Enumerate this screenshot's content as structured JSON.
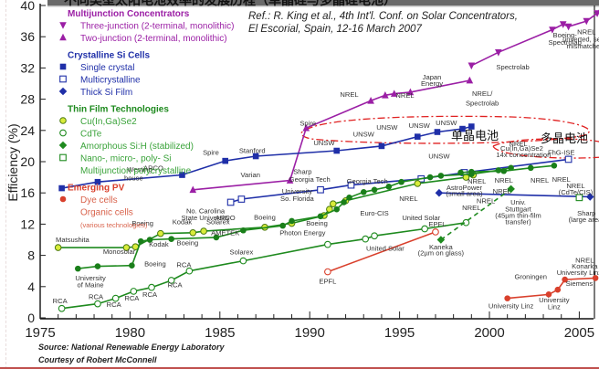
{
  "page": {
    "top_banner_text": "不同类型太阳电池效率的发展历程（单晶硅与多晶硅电池）",
    "annotations_cn": {
      "mono": "单晶电池",
      "poly": "多晶电池"
    },
    "colors": {
      "multijunction": "#9b1fa5",
      "crystalline": "#1f2fa8",
      "thin_film": "#1e8a1e",
      "cigs_fill": "#d9ec3a",
      "emerging": "#d9402c",
      "annotation_red": "#e02020"
    }
  },
  "chart_data": {
    "type": "line",
    "title": "",
    "xlabel": "",
    "ylabel": "Efficiency (%)",
    "xlim": [
      1975,
      2006
    ],
    "ylim": [
      0,
      40
    ],
    "xticks": [
      "1975",
      "1980",
      "1985",
      "1990",
      "1995",
      "2000",
      "2005"
    ],
    "yticks": [
      "0",
      "4",
      "8",
      "12",
      "16",
      "20",
      "24",
      "28",
      "32",
      "36",
      "40"
    ],
    "grid": false,
    "reference": [
      "Ref.: R. King et al., 4th Int'l. Conf. on Solar Concentrators,",
      "El Escorial, Spain, 12-16 March 2007"
    ],
    "source": [
      "Source:  National Renewable Energy Laboratory",
      "Courtesy of Robert McConnell"
    ],
    "legend": {
      "placement": "top-left",
      "groups": [
        {
          "title": "Multijunction Concentrators",
          "color": "#9b1fa5",
          "entries": [
            {
              "marker": "triangle-down",
              "label": "Three-junction (2-terminal, monolithic)"
            },
            {
              "marker": "triangle-up",
              "label": "Two-junction (2-terminal, monolithic)"
            }
          ]
        },
        {
          "title": "Crystalline Si Cells",
          "color": "#1f2fa8",
          "entries": [
            {
              "marker": "square-filled",
              "label": "Single crystal"
            },
            {
              "marker": "square-open",
              "label": "Multicrystalline"
            },
            {
              "marker": "diamond",
              "label": "Thick Si Film"
            }
          ]
        },
        {
          "title": "Thin Film Technologies",
          "color": "#1e8a1e",
          "entries": [
            {
              "marker": "circle-yellow",
              "label": "Cu(In,Ga)Se2"
            },
            {
              "marker": "circle-open",
              "label": "CdTe"
            },
            {
              "marker": "diamond-green",
              "label": "Amorphous Si:H (stabilized)"
            },
            {
              "marker": "square-open-green",
              "label": "Nano-, micro-, poly- Si"
            },
            {
              "marker": "none",
              "label": "Multijunction polycrystalline"
            }
          ]
        },
        {
          "title": "Emerging PV",
          "color": "#d9402c",
          "entries": [
            {
              "marker": "circle-filled-red",
              "label": "Dye cells"
            },
            {
              "marker": "none",
              "label": "Organic cells"
            },
            {
              "marker": "none",
              "label": "(various technologies)"
            }
          ]
        }
      ]
    },
    "series": [
      {
        "name": "Three-junction concentrator",
        "color": "#9b1fa5",
        "marker": "triangle-down",
        "points": [
          [
            1999.0,
            32.3
          ],
          [
            2000.5,
            34.0
          ],
          [
            2003.5,
            36.9
          ],
          [
            2004.1,
            37.6
          ],
          [
            2004.4,
            37.3
          ],
          [
            2005.4,
            38.0
          ],
          [
            2006.0,
            39.0
          ],
          [
            2006.3,
            40.0
          ]
        ]
      },
      {
        "name": "Two-junction concentrator",
        "color": "#9b1fa5",
        "marker": "triangle-up",
        "points": [
          [
            1983.5,
            16.4
          ],
          [
            1988.9,
            17.6
          ],
          [
            1989.8,
            24.3
          ],
          [
            1993.4,
            27.8
          ],
          [
            1994.2,
            28.5
          ],
          [
            1994.7,
            28.7
          ],
          [
            1995.6,
            28.9
          ],
          [
            1998.9,
            30.4
          ]
        ]
      },
      {
        "name": "Single crystal Si",
        "color": "#1f2fa8",
        "marker": "square-filled",
        "points": [
          [
            1976.2,
            16.6
          ],
          [
            1978.2,
            17.4
          ],
          [
            1982.9,
            18.3
          ],
          [
            1985.3,
            20.1
          ],
          [
            1987.0,
            20.7
          ],
          [
            1991.5,
            21.4
          ],
          [
            1994.0,
            22.0
          ],
          [
            1996.0,
            23.2
          ],
          [
            1997.1,
            23.8
          ],
          [
            1998.5,
            24.2
          ],
          [
            1999.0,
            24.5
          ]
        ]
      },
      {
        "name": "Multicrystalline Si",
        "color": "#1f2fa8",
        "marker": "square-open",
        "points": [
          [
            1985.6,
            14.8
          ],
          [
            1986.2,
            15.2
          ],
          [
            1990.6,
            16.4
          ],
          [
            1992.3,
            17.0
          ],
          [
            1996.2,
            17.8
          ],
          [
            1998.6,
            18.6
          ],
          [
            2004.4,
            20.3
          ]
        ]
      },
      {
        "name": "Cu(In,Ga)Se2",
        "color": "#1e8a1e",
        "marker": "circle-yellow",
        "points": [
          [
            1976.0,
            9.0
          ],
          [
            1979.8,
            9.0
          ],
          [
            1980.3,
            9.1
          ],
          [
            1981.7,
            10.8
          ],
          [
            1983.5,
            10.9
          ],
          [
            1984.1,
            11.1
          ],
          [
            1987.5,
            11.6
          ],
          [
            1989.0,
            12.1
          ],
          [
            1990.8,
            13.1
          ],
          [
            1991.1,
            13.9
          ],
          [
            1991.3,
            14.6
          ],
          [
            1992.0,
            15.0
          ],
          [
            1996.0,
            17.2
          ],
          [
            1998.7,
            18.0
          ],
          [
            1999.1,
            18.3
          ]
        ]
      },
      {
        "name": "CdTe",
        "color": "#1e8a1e",
        "marker": "circle-open",
        "points": [
          [
            1976.2,
            1.2
          ],
          [
            1978.2,
            1.8
          ],
          [
            1979.2,
            2.5
          ],
          [
            1980.2,
            3.4
          ],
          [
            1981.2,
            3.9
          ],
          [
            1982.3,
            4.8
          ],
          [
            1983.3,
            6.0
          ],
          [
            1986.3,
            7.3
          ],
          [
            1991.0,
            9.4
          ],
          [
            1993.1,
            10.1
          ],
          [
            1993.6,
            10.5
          ],
          [
            1996.4,
            11.4
          ],
          [
            1998.7,
            12.2
          ]
        ]
      },
      {
        "name": "Amorphous Si:H",
        "color": "#1e8a1e",
        "marker": "circle-filled-green",
        "points": [
          [
            1977.1,
            6.3
          ],
          [
            1978.2,
            6.6
          ],
          [
            1980.1,
            6.7
          ],
          [
            1980.6,
            9.8
          ],
          [
            1981.1,
            10.0
          ],
          [
            1982.3,
            10.1
          ],
          [
            1984.8,
            10.3
          ],
          [
            1986.3,
            11.2
          ],
          [
            1988.5,
            11.8
          ],
          [
            1989.0,
            12.4
          ],
          [
            1990.6,
            13.0
          ],
          [
            1991.5,
            13.9
          ],
          [
            1991.9,
            14.8
          ],
          [
            1992.2,
            15.4
          ],
          [
            1993.0,
            16.1
          ],
          [
            1993.6,
            16.4
          ],
          [
            1994.4,
            16.8
          ],
          [
            1995.1,
            17.4
          ],
          [
            1996.7,
            18.0
          ],
          [
            1997.3,
            18.2
          ],
          [
            1999.0,
            18.4
          ],
          [
            2000.5,
            18.9
          ],
          [
            2001.2,
            19.2
          ]
        ]
      },
      {
        "name": "Thin film top (NREL CIGS)",
        "color": "#1e8a1e",
        "marker": "circle-filled-green",
        "points": [
          [
            1998.4,
            18.6
          ],
          [
            1999.0,
            18.7
          ],
          [
            2000.8,
            18.8
          ],
          [
            2002.3,
            19.2
          ],
          [
            2003.6,
            19.5
          ]
        ]
      },
      {
        "name": "Thick Si Film",
        "color": "#1f2fa8",
        "marker": "diamond",
        "points": [
          [
            1997.2,
            16.0
          ],
          [
            2005.6,
            15.5
          ]
        ]
      },
      {
        "name": "Kaneka / Stuttgart",
        "color": "#1e8a1e",
        "marker": "diamond-green",
        "dashed": true,
        "points": [
          [
            1997.3,
            10.0
          ],
          [
            2001.2,
            16.5
          ]
        ]
      },
      {
        "name": "Dye cells (EPFL)",
        "color": "#d9402c",
        "marker": "circle-open-red",
        "points": [
          [
            1991.0,
            5.9
          ],
          [
            1997.0,
            11.0
          ]
        ]
      },
      {
        "name": "Organic cells",
        "color": "#d9402c",
        "marker": "circle-filled-red",
        "points": [
          [
            2001.0,
            2.5
          ],
          [
            2003.3,
            3.0
          ],
          [
            2003.8,
            3.6
          ],
          [
            2004.2,
            4.9
          ],
          [
            2005.9,
            5.1
          ]
        ]
      },
      {
        "name": "Nano/micro/poly Si",
        "color": "#1e8a1e",
        "marker": "square-open-green",
        "points": [
          [
            2005.0,
            15.4
          ]
        ]
      }
    ],
    "annotations": [
      {
        "text": "Spire",
        "x": 1989.9,
        "y": 24.6
      },
      {
        "text": "NREL",
        "x": 1995.3,
        "y": 28.2
      },
      {
        "text": "Japan",
        "x": 1996.8,
        "y": 30.5
      },
      {
        "text": "Energy",
        "x": 1996.8,
        "y": 29.7
      },
      {
        "text": "NREL/",
        "x": 1999.6,
        "y": 28.4
      },
      {
        "text": "Spectrolab",
        "x": 1999.6,
        "y": 27.2
      },
      {
        "text": "Spectrolab",
        "x": 2001.3,
        "y": 31.8
      },
      {
        "text": "Boeing-",
        "x": 2004.2,
        "y": 35.9
      },
      {
        "text": "Spectrolab",
        "x": 2004.2,
        "y": 35.0
      },
      {
        "text": "NREL",
        "x": 2005.4,
        "y": 36.3
      },
      {
        "text": "(inverted, semi-",
        "x": 2005.4,
        "y": 35.4
      },
      {
        "text": "mismatched)",
        "x": 2005.4,
        "y": 34.5
      },
      {
        "text": "NREL",
        "x": 1992.2,
        "y": 28.3
      },
      {
        "text": "Varian",
        "x": 1986.7,
        "y": 18.0
      },
      {
        "text": "Spire",
        "x": 1984.5,
        "y": 20.9
      },
      {
        "text": "Stanford",
        "x": 1986.8,
        "y": 21.1
      },
      {
        "text": "Westing-",
        "x": 1980.6,
        "y": 18.7
      },
      {
        "text": "house",
        "x": 1980.2,
        "y": 17.6
      },
      {
        "text": "ARCO",
        "x": 1981.3,
        "y": 18.9
      },
      {
        "text": "UNSW",
        "x": 1990.8,
        "y": 22.1
      },
      {
        "text": "UNSW",
        "x": 1993.0,
        "y": 23.2
      },
      {
        "text": "UNSW",
        "x": 1994.3,
        "y": 24.1
      },
      {
        "text": "UNSW",
        "x": 1996.1,
        "y": 24.3
      },
      {
        "text": "UNSW",
        "x": 1997.6,
        "y": 24.7
      },
      {
        "text": "No. Carolina",
        "x": 1984.2,
        "y": 13.4
      },
      {
        "text": "State University",
        "x": 1984.2,
        "y": 12.5
      },
      {
        "text": "Solarex",
        "x": 1984.9,
        "y": 12.0
      },
      {
        "text": "Georgia Tech",
        "x": 1993.2,
        "y": 17.2
      },
      {
        "text": "Sharp",
        "x": 1989.6,
        "y": 18.4
      },
      {
        "text": "Georgia Tech",
        "x": 1990.0,
        "y": 17.4
      },
      {
        "text": "UNSW",
        "x": 1997.2,
        "y": 20.4
      },
      {
        "text": "FhG-ISE",
        "x": 2004.0,
        "y": 20.9
      },
      {
        "text": "NREL",
        "x": 2001.6,
        "y": 22.0
      },
      {
        "text": "Cu(In,Ga)Se2",
        "x": 2001.8,
        "y": 21.4
      },
      {
        "text": "14x concentration",
        "x": 2001.9,
        "y": 20.6
      },
      {
        "text": "NREL",
        "x": 1999.3,
        "y": 17.2
      },
      {
        "text": "NREL",
        "x": 2000.8,
        "y": 17.3
      },
      {
        "text": "NREL",
        "x": 2002.8,
        "y": 17.3
      },
      {
        "text": "NREL",
        "x": 2004.0,
        "y": 17.4
      },
      {
        "text": "AstroPower",
        "x": 1998.6,
        "y": 16.4
      },
      {
        "text": "(small area)",
        "x": 1998.6,
        "y": 15.6
      },
      {
        "text": "NREL",
        "x": 1995.5,
        "y": 15.0
      },
      {
        "text": "NREL",
        "x": 1999.0,
        "y": 13.8
      },
      {
        "text": "NREL",
        "x": 1999.8,
        "y": 14.7
      },
      {
        "text": "NREL",
        "x": 2000.7,
        "y": 15.9
      },
      {
        "text": "Univ.",
        "x": 2001.6,
        "y": 14.5
      },
      {
        "text": "Stuttgart",
        "x": 2001.6,
        "y": 13.6
      },
      {
        "text": "(45µm thin-film",
        "x": 2001.6,
        "y": 12.8
      },
      {
        "text": "transfer)",
        "x": 2001.6,
        "y": 12.0
      },
      {
        "text": "NREL",
        "x": 2004.8,
        "y": 16.6
      },
      {
        "text": "(CdTe/CIS)",
        "x": 2004.8,
        "y": 15.8
      },
      {
        "text": "Sharp",
        "x": 2005.4,
        "y": 13.1
      },
      {
        "text": "(large area)",
        "x": 2005.4,
        "y": 12.3
      },
      {
        "text": "University",
        "x": 1989.3,
        "y": 15.9
      },
      {
        "text": "So. Florida",
        "x": 1989.3,
        "y": 15.0
      },
      {
        "text": "Euro-CIS",
        "x": 1993.6,
        "y": 13.1
      },
      {
        "text": "Boeing",
        "x": 1990.4,
        "y": 11.8
      },
      {
        "text": "ARCO",
        "x": 1985.3,
        "y": 12.5
      },
      {
        "text": "Boeing",
        "x": 1987.5,
        "y": 12.6
      },
      {
        "text": "AMETEK",
        "x": 1985.3,
        "y": 10.6
      },
      {
        "text": "Photon Energy",
        "x": 1989.6,
        "y": 10.6
      },
      {
        "text": "United Solar",
        "x": 1994.2,
        "y": 8.6
      },
      {
        "text": "United Solar",
        "x": 1996.2,
        "y": 12.5
      },
      {
        "text": "Kodak",
        "x": 1982.9,
        "y": 12.0
      },
      {
        "text": "Kodak",
        "x": 1981.6,
        "y": 9.1
      },
      {
        "text": "Boeing",
        "x": 1983.2,
        "y": 9.3
      },
      {
        "text": "Boeing",
        "x": 1980.7,
        "y": 11.8
      },
      {
        "text": "Matsushita",
        "x": 1976.8,
        "y": 9.7
      },
      {
        "text": "Monosolar",
        "x": 1979.4,
        "y": 8.2
      },
      {
        "text": "Boeing",
        "x": 1981.4,
        "y": 6.6
      },
      {
        "text": "University",
        "x": 1977.8,
        "y": 4.8
      },
      {
        "text": "of Maine",
        "x": 1977.8,
        "y": 3.9
      },
      {
        "text": "RCA",
        "x": 1976.1,
        "y": 1.9
      },
      {
        "text": "RCA",
        "x": 1978.1,
        "y": 2.4
      },
      {
        "text": "RCA",
        "x": 1979.1,
        "y": 1.4
      },
      {
        "text": "RCA",
        "x": 1980.1,
        "y": 2.2
      },
      {
        "text": "RCA",
        "x": 1981.1,
        "y": 2.7
      },
      {
        "text": "RCA",
        "x": 1982.5,
        "y": 3.9
      },
      {
        "text": "RCA",
        "x": 1983.0,
        "y": 6.5
      },
      {
        "text": "Solarex",
        "x": 1986.2,
        "y": 8.1
      },
      {
        "text": "EPFL",
        "x": 1997.1,
        "y": 11.7
      },
      {
        "text": "EPFL",
        "x": 1991.0,
        "y": 4.4
      },
      {
        "text": "Kaneka",
        "x": 1997.3,
        "y": 8.8
      },
      {
        "text": "(2µm on glass)",
        "x": 1997.3,
        "y": 8.0
      },
      {
        "text": "NREL",
        "x": 2005.3,
        "y": 7.1
      },
      {
        "text": "Konarka",
        "x": 2005.3,
        "y": 6.3
      },
      {
        "text": "University Linz",
        "x": 2005.0,
        "y": 5.5
      },
      {
        "text": "Groningen",
        "x": 2002.3,
        "y": 5.0
      },
      {
        "text": "Siemens",
        "x": 2005.0,
        "y": 4.1
      },
      {
        "text": "University Linz",
        "x": 2001.2,
        "y": 1.2
      },
      {
        "text": "University",
        "x": 2003.6,
        "y": 2.0
      },
      {
        "text": "Linz",
        "x": 2003.6,
        "y": 1.1
      }
    ]
  }
}
